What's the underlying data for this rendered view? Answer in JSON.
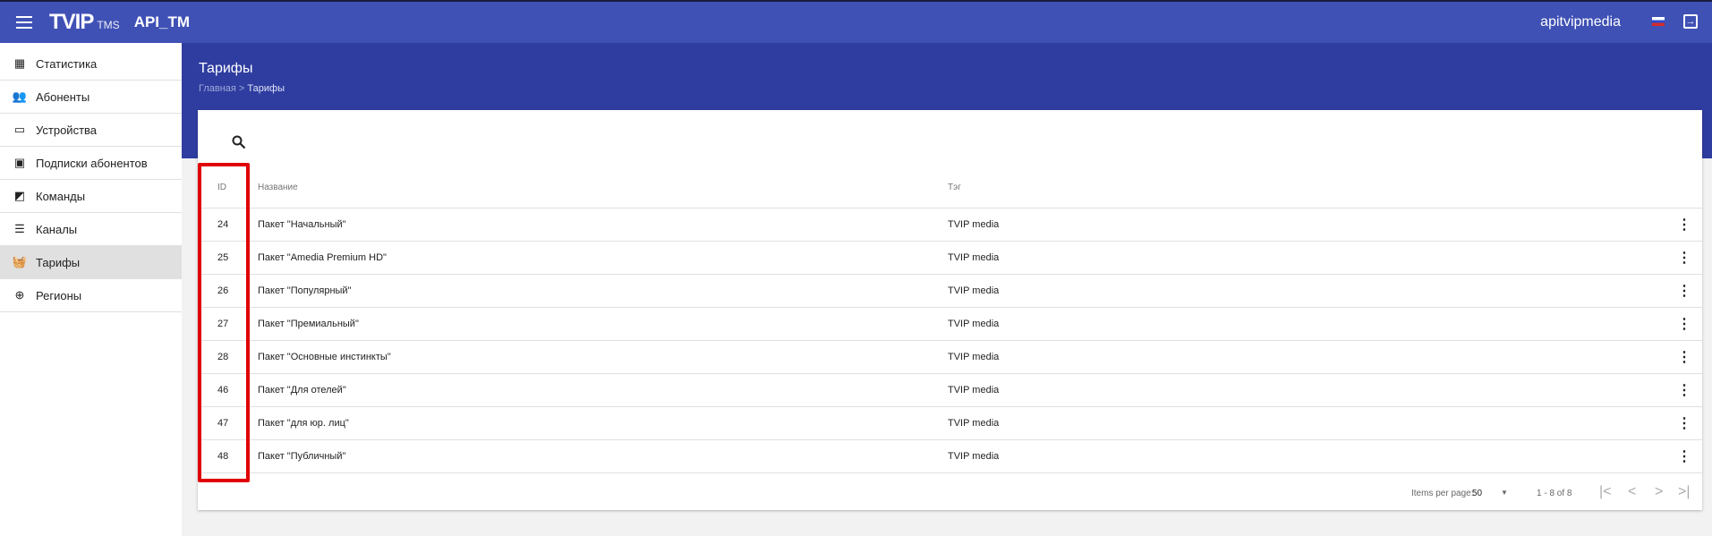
{
  "header": {
    "logo": "TVIP",
    "logo_sub": "TMS",
    "app_name": "API_TM",
    "user": "apitvipmedia"
  },
  "sidebar": {
    "items": [
      {
        "label": "Статистика",
        "icon": "dashboard-icon"
      },
      {
        "label": "Абоненты",
        "icon": "people-icon"
      },
      {
        "label": "Устройства",
        "icon": "monitor-icon"
      },
      {
        "label": "Подписки абонентов",
        "icon": "subscription-icon"
      },
      {
        "label": "Команды",
        "icon": "cast-icon"
      },
      {
        "label": "Каналы",
        "icon": "channels-icon"
      },
      {
        "label": "Тарифы",
        "icon": "basket-icon",
        "active": true
      },
      {
        "label": "Регионы",
        "icon": "globe-icon"
      }
    ]
  },
  "page": {
    "title": "Тарифы",
    "breadcrumb": [
      "Главная",
      "Тарифы"
    ]
  },
  "table": {
    "columns": [
      "ID",
      "Название",
      "Тэг"
    ],
    "rows": [
      {
        "id": "24",
        "name": "Пакет \"Начальный\"",
        "tag": "TVIP media"
      },
      {
        "id": "25",
        "name": "Пакет \"Amedia Premium HD\"",
        "tag": "TVIP media"
      },
      {
        "id": "26",
        "name": "Пакет \"Популярный\"",
        "tag": "TVIP media"
      },
      {
        "id": "27",
        "name": "Пакет \"Премиальный\"",
        "tag": "TVIP media"
      },
      {
        "id": "28",
        "name": "Пакет \"Основные инстинкты\"",
        "tag": "TVIP media"
      },
      {
        "id": "46",
        "name": "Пакет \"Для отелей\"",
        "tag": "TVIP media"
      },
      {
        "id": "47",
        "name": "Пакет \"для юр. лиц\"",
        "tag": "TVIP media"
      },
      {
        "id": "48",
        "name": "Пакет \"Публичный\"",
        "tag": "TVIP media"
      }
    ]
  },
  "paginator": {
    "items_per_page_label": "Items per page:",
    "items_per_page": "50",
    "range": "1 - 8 of 8"
  },
  "colors": {
    "header": "#3f51b5",
    "band": "#2f3da0",
    "highlight": "#e00000"
  }
}
